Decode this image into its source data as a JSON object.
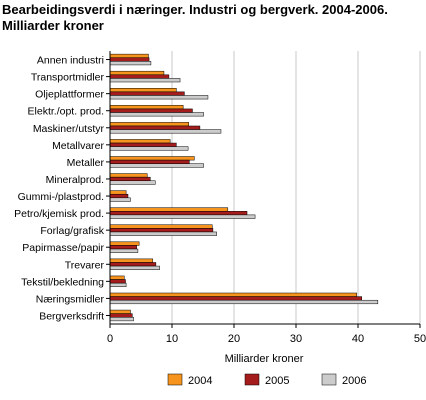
{
  "title_line1": "Bearbeidingsverdi i næringer. Industri og bergverk. 2004-2006.",
  "title_line2": "Milliarder kroner",
  "chart_data": {
    "type": "bar",
    "orientation": "horizontal",
    "categories": [
      "Annen industri",
      "Transportmidler",
      "Oljeplattformer",
      "Elektr./opt. prod.",
      "Maskiner/utstyr",
      "Metallvarer",
      "Metaller",
      "Mineralprod.",
      "Gummi-/plastprod.",
      "Petro/kjemisk prod.",
      "Forlag/grafisk",
      "Papirmasse/papir",
      "Trevarer",
      "Tekstil/bekledning",
      "Næringsmidler",
      "Bergverksdrift"
    ],
    "series": [
      {
        "name": "2004",
        "color": "#f7941d",
        "values": [
          6.2,
          8.7,
          10.7,
          11.8,
          12.7,
          9.7,
          13.6,
          6.0,
          2.6,
          19.0,
          16.5,
          4.7,
          6.9,
          2.3,
          39.8,
          3.3
        ]
      },
      {
        "name": "2005",
        "color": "#a51c1c",
        "values": [
          6.3,
          9.5,
          12.0,
          13.3,
          14.5,
          10.7,
          12.8,
          6.5,
          2.9,
          22.1,
          16.6,
          4.3,
          7.4,
          2.5,
          40.6,
          3.6
        ]
      },
      {
        "name": "2006",
        "color": "#cccccc",
        "values": [
          6.6,
          11.3,
          15.8,
          15.1,
          17.9,
          12.6,
          15.1,
          7.3,
          3.3,
          23.4,
          17.2,
          4.5,
          8.0,
          2.6,
          43.2,
          3.8
        ]
      }
    ],
    "xlabel": "Milliarder kroner",
    "xlim": [
      0,
      50
    ],
    "xticks": [
      0,
      10,
      20,
      30,
      40,
      50
    ],
    "grid": true,
    "legend_position": "bottom"
  }
}
